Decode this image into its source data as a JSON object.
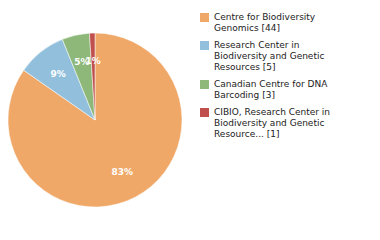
{
  "chart_data": {
    "type": "pie",
    "categories": [
      "Centre for Biodiversity\nGenomics [44]",
      "Research Center in\nBiodiversity and Genetic\nResources [5]",
      "Canadian Centre for DNA\nBarcoding [3]",
      "CIBIO, Research Center in\nBiodiversity and Genetic\nResource... [1]"
    ],
    "values": [
      83,
      9,
      5,
      1
    ],
    "value_labels": [
      "83%",
      "9%",
      "5%",
      "1%"
    ],
    "colors": [
      "#f0a868",
      "#92c0dc",
      "#8db87a",
      "#c0504d"
    ],
    "data_labels": true,
    "legend": "right"
  }
}
